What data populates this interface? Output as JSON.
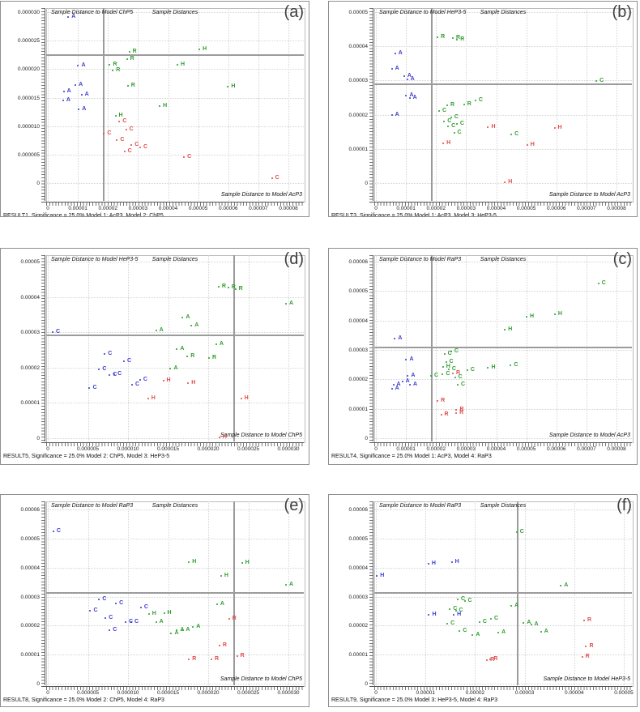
{
  "figure": {
    "description": "Grid of six Unscrambler-style sample distance scatter plots (Coomans plots) comparing SIMCA class models",
    "panel_letters": [
      "(a)",
      "(b)",
      "(d)",
      "(c)",
      "(e)",
      "(f)"
    ],
    "classes": [
      {
        "label": "A",
        "name": "class-A"
      },
      {
        "label": "C",
        "name": "class-C"
      },
      {
        "label": "H",
        "name": "class-H"
      },
      {
        "label": "R",
        "name": "class-R"
      }
    ]
  },
  "colors": {
    "blue": "#3b3bd1",
    "green": "#2f9e2f",
    "red": "#e04b4b",
    "grid": "#d4d4d4",
    "refline": "#9b9b9b",
    "axis": "#555555",
    "frame": "#bcbcbc",
    "border": "#8f8f8f",
    "text": "#1a1a1a",
    "panel_letter": "#3f3f3f"
  },
  "chart_data": [
    {
      "id": "a",
      "type": "scatter",
      "panel_label": "(a)",
      "title": "Sample Distances",
      "y_axis_title": "Sample Distance to Model ChP5",
      "x_axis_title": "Sample Distance to Model AcP3",
      "footer": "RESULT1, Significance = 25.0% Model 1: AcP3, Model 2: ChP5",
      "value_scale": "all x/y values and limits are in units of 1e-6",
      "x_ticks": [
        "0",
        "0.00001",
        "0.00002",
        "0.00003",
        "0.00004",
        "0.00005",
        "0.00006",
        "0.00007",
        "0.00008"
      ],
      "y_ticks": [
        "0.000030",
        "0.000025",
        "0.000020",
        "0.000015",
        "0.000010",
        "0.000005",
        "0"
      ],
      "xlim": [
        0,
        80
      ],
      "ylim": [
        0,
        30
      ],
      "vline": 18.6,
      "hline": 22.5,
      "series": [
        {
          "name": "A",
          "color_key": "blue",
          "points": [
            [
              6.8,
              29.2
            ],
            [
              10.1,
              20.6
            ],
            [
              9.2,
              17.2
            ],
            [
              5.3,
              16.1
            ],
            [
              11.2,
              15.5
            ],
            [
              5.1,
              14.5
            ],
            [
              10.3,
              12.9
            ]
          ]
        },
        {
          "name": "R",
          "color_key": "green",
          "points": [
            [
              27.1,
              23.0
            ],
            [
              26.3,
              21.8
            ],
            [
              20.6,
              20.7
            ],
            [
              21.6,
              19.7
            ],
            [
              26.6,
              17.0
            ]
          ]
        },
        {
          "name": "H",
          "color_key": "green",
          "points": [
            [
              50.4,
              23.5
            ],
            [
              43.1,
              20.8
            ],
            [
              59.9,
              16.9
            ],
            [
              37.2,
              13.5
            ],
            [
              22.5,
              11.8
            ]
          ]
        },
        {
          "name": "C",
          "color_key": "red",
          "points": [
            [
              23.8,
              10.8
            ],
            [
              26.0,
              9.4
            ],
            [
              18.7,
              8.7
            ],
            [
              23.0,
              7.5
            ],
            [
              27.8,
              6.7
            ],
            [
              30.7,
              6.3
            ],
            [
              25.5,
              5.5
            ],
            [
              45.3,
              4.5
            ],
            [
              74.5,
              0.8
            ]
          ]
        }
      ]
    },
    {
      "id": "b",
      "type": "scatter",
      "panel_label": "(b)",
      "title": "Sample Distances",
      "y_axis_title": "Sample Distance to Model HeP3-5",
      "x_axis_title": "Sample Distance to Model AcP3",
      "footer": "RESULT3, Significance = 25.0% Model 1: AcP3, Model 3: HeP3-5",
      "value_scale": "all x/y values and limits are in units of 1e-6",
      "x_ticks": [
        "0",
        "0.00001",
        "0.00002",
        "0.00003",
        "0.00004",
        "0.00005",
        "0.00006",
        "0.00007",
        "0.00008"
      ],
      "y_ticks": [
        "0.00005",
        "0.00004",
        "0.00003",
        "0.00002",
        "0.00001",
        "0"
      ],
      "xlim": [
        0,
        80
      ],
      "ylim": [
        0,
        50
      ],
      "vline": 18.6,
      "hline": 28.9,
      "series": [
        {
          "name": "A",
          "color_key": "blue",
          "points": [
            [
              6.4,
              37.8
            ],
            [
              5.3,
              33.4
            ],
            [
              9.4,
              31.3
            ],
            [
              10.4,
              30.3
            ],
            [
              10.1,
              25.7
            ],
            [
              11.2,
              25.0
            ],
            [
              5.3,
              20.0
            ]
          ]
        },
        {
          "name": "R",
          "color_key": "green",
          "points": [
            [
              20.5,
              42.7
            ],
            [
              25.6,
              42.4
            ],
            [
              27.0,
              42.0
            ],
            [
              23.7,
              22.8
            ],
            [
              29.3,
              23.1
            ]
          ]
        },
        {
          "name": "C",
          "color_key": "green",
          "points": [
            [
              73.3,
              29.9
            ],
            [
              33.1,
              24.2
            ],
            [
              21.0,
              21.2
            ],
            [
              25.0,
              19.2
            ],
            [
              22.7,
              18.1
            ],
            [
              26.9,
              17.4
            ],
            [
              24.0,
              16.5
            ],
            [
              26.0,
              14.8
            ],
            [
              45.0,
              14.1
            ]
          ]
        },
        {
          "name": "H",
          "color_key": "red",
          "points": [
            [
              37.3,
              16.3
            ],
            [
              59.4,
              16.0
            ],
            [
              22.4,
              11.5
            ],
            [
              50.3,
              11.2
            ],
            [
              42.9,
              0.3
            ]
          ]
        }
      ]
    },
    {
      "id": "d",
      "type": "scatter",
      "panel_label": "(d)",
      "title": "Sample Distances",
      "y_axis_title": "Sample Distance to Model HeP3-5",
      "x_axis_title": "Sample Distance to Model ChP5",
      "footer": "RESULT5, Significance = 25.0% Model 2: ChP5, Model 3: HeP3-5",
      "value_scale": "all x/y values and limits are in units of 1e-6",
      "x_ticks": [
        "0",
        "0.000005",
        "0.000010",
        "0.000015",
        "0.000020",
        "0.000025",
        "0.000030"
      ],
      "y_ticks": [
        "0.00005",
        "0.00004",
        "0.00003",
        "0.00002",
        "0.00001",
        "0"
      ],
      "xlim": [
        0,
        30
      ],
      "ylim": [
        0,
        50
      ],
      "vline": 23.2,
      "hline": 29.1,
      "series": [
        {
          "name": "C",
          "color_key": "blue",
          "points": [
            [
              0.6,
              30.1
            ],
            [
              7.1,
              23.8
            ],
            [
              9.5,
              21.8
            ],
            [
              6.4,
              19.6
            ],
            [
              8.3,
              18.1
            ],
            [
              7.7,
              17.8
            ],
            [
              11.5,
              16.4
            ],
            [
              10.5,
              15.2
            ],
            [
              5.2,
              14.3
            ]
          ]
        },
        {
          "name": "A",
          "color_key": "green",
          "points": [
            [
              29.7,
              38.1
            ],
            [
              16.8,
              34.1
            ],
            [
              17.9,
              31.9
            ],
            [
              13.5,
              30.6
            ],
            [
              21.0,
              26.5
            ],
            [
              16.1,
              25.2
            ],
            [
              15.3,
              19.8
            ]
          ]
        },
        {
          "name": "R",
          "color_key": "green",
          "points": [
            [
              21.3,
              42.9
            ],
            [
              22.5,
              42.7
            ],
            [
              23.4,
              42.3
            ],
            [
              17.4,
              23.1
            ],
            [
              20.1,
              22.8
            ]
          ]
        },
        {
          "name": "H",
          "color_key": "red",
          "points": [
            [
              14.4,
              16.2
            ],
            [
              17.5,
              15.7
            ],
            [
              12.5,
              11.2
            ],
            [
              24.1,
              11.2
            ],
            [
              21.4,
              0.3
            ]
          ]
        }
      ]
    },
    {
      "id": "c",
      "type": "scatter",
      "panel_label": "(c)",
      "title": "Sample Distances",
      "y_axis_title": "Sample Distance to Model RaP3",
      "x_axis_title": "Sample Distance to Model AcP3",
      "footer": "RESULT4, Significance = 25.0% Model 1: AcP3, Model 4: RaP3",
      "value_scale": "all x/y values and limits are in units of 1e-6",
      "x_ticks": [
        "0",
        "0.00001",
        "0.00002",
        "0.00003",
        "0.00004",
        "0.00005",
        "0.00006",
        "0.00007",
        "0.00008"
      ],
      "y_ticks": [
        "0.00006",
        "0.00005",
        "0.00004",
        "0.00003",
        "0.00002",
        "0.00001",
        "0"
      ],
      "xlim": [
        0,
        80
      ],
      "ylim": [
        0,
        60
      ],
      "vline": 18.6,
      "hline": 30.7,
      "series": [
        {
          "name": "A",
          "color_key": "blue",
          "points": [
            [
              6.3,
              33.9
            ],
            [
              10.1,
              26.7
            ],
            [
              10.6,
              21.1
            ],
            [
              8.8,
              19.4
            ],
            [
              5.8,
              18.3
            ],
            [
              11.3,
              18.2
            ],
            [
              5.3,
              16.9
            ]
          ]
        },
        {
          "name": "C",
          "color_key": "green",
          "points": [
            [
              74.0,
              52.5
            ],
            [
              44.8,
              24.8
            ],
            [
              30.4,
              23.2
            ],
            [
              25.0,
              29.4
            ],
            [
              22.8,
              28.5
            ],
            [
              23.3,
              25.9
            ],
            [
              24.2,
              23.5
            ],
            [
              22.2,
              21.7
            ],
            [
              18.3,
              21.1
            ],
            [
              26.3,
              20.6
            ],
            [
              27.2,
              18.3
            ]
          ]
        },
        {
          "name": "H",
          "color_key": "green",
          "points": [
            [
              59.5,
              42.0
            ],
            [
              50.1,
              41.3
            ],
            [
              42.9,
              37.0
            ],
            [
              22.3,
              24.2
            ],
            [
              37.3,
              24.0
            ]
          ]
        },
        {
          "name": "R",
          "color_key": "red",
          "points": [
            [
              25.6,
              22.0
            ],
            [
              20.5,
              12.6
            ],
            [
              21.7,
              7.9
            ],
            [
              26.7,
              8.5
            ],
            [
              26.8,
              9.5
            ]
          ]
        }
      ]
    },
    {
      "id": "e",
      "type": "scatter",
      "panel_label": "(e)",
      "title": "Sample Distances",
      "y_axis_title": "Sample Distance to Model RaP3",
      "x_axis_title": "Sample Distance to Model ChP5",
      "footer": "RESULT8, Significance = 25.0% Model 2: ChP5, Model 4: RaP3",
      "value_scale": "all x/y values and limits are in units of 1e-6",
      "x_ticks": [
        "0",
        "0.000005",
        "0.000010",
        "0.000015",
        "0.000020",
        "0.000025",
        "0.000030"
      ],
      "y_ticks": [
        "0.00006",
        "0.00005",
        "0.00004",
        "0.00003",
        "0.00002",
        "0.00001",
        "0"
      ],
      "xlim": [
        0,
        30
      ],
      "ylim": [
        0,
        60
      ],
      "vline": 23.2,
      "hline": 31.3,
      "series": [
        {
          "name": "C",
          "color_key": "blue",
          "points": [
            [
              0.7,
              52.4
            ],
            [
              6.4,
              29.0
            ],
            [
              8.5,
              27.6
            ],
            [
              11.6,
              26.2
            ],
            [
              5.3,
              25.1
            ],
            [
              7.2,
              22.5
            ],
            [
              9.7,
              21.3
            ],
            [
              10.4,
              21.3
            ],
            [
              7.7,
              18.4
            ]
          ]
        },
        {
          "name": "H",
          "color_key": "green",
          "points": [
            [
              17.6,
              42.0
            ],
            [
              24.2,
              41.6
            ],
            [
              21.6,
              37.0
            ],
            [
              14.5,
              24.2
            ],
            [
              12.6,
              24.1
            ]
          ]
        },
        {
          "name": "A",
          "color_key": "green",
          "points": [
            [
              29.7,
              34.1
            ],
            [
              21.1,
              27.4
            ],
            [
              13.5,
              21.3
            ],
            [
              18.1,
              19.6
            ],
            [
              16.1,
              18.5
            ],
            [
              16.8,
              18.5
            ],
            [
              15.4,
              17.2
            ]
          ]
        },
        {
          "name": "R",
          "color_key": "red",
          "points": [
            [
              22.6,
              22.2
            ],
            [
              21.4,
              13.1
            ],
            [
              17.6,
              8.4
            ],
            [
              20.4,
              8.3
            ],
            [
              23.6,
              9.5
            ]
          ]
        }
      ]
    },
    {
      "id": "f",
      "type": "scatter",
      "panel_label": "(f)",
      "title": "Sample Distances",
      "y_axis_title": "Sample Distance to Model RaP3",
      "x_axis_title": "Sample Distance to Model HeP3-5",
      "footer": "RESULT9, Significance = 25.0% Model 3: HeP3-5, Model 4: RaP3",
      "value_scale": "all x/y values and limits are in units of 1e-6",
      "x_ticks": [
        "0",
        "0.00001",
        "0.00002",
        "0.00003",
        "0.00004",
        "0.00005"
      ],
      "y_ticks": [
        "0.00006",
        "0.00005",
        "0.00004",
        "0.00003",
        "0.00002",
        "0.00001",
        "0"
      ],
      "xlim": [
        0,
        50
      ],
      "ylim": [
        0,
        60
      ],
      "vline": 28.6,
      "hline": 31.2,
      "series": [
        {
          "name": "H",
          "color_key": "blue",
          "points": [
            [
              15.3,
              42.0
            ],
            [
              10.6,
              41.4
            ],
            [
              0.2,
              37.0
            ],
            [
              10.7,
              23.7
            ],
            [
              15.7,
              23.6
            ]
          ]
        },
        {
          "name": "C",
          "color_key": "green",
          "points": [
            [
              28.4,
              52.2
            ],
            [
              16.5,
              29.0
            ],
            [
              17.9,
              28.6
            ],
            [
              14.9,
              25.6
            ],
            [
              16.1,
              25.2
            ],
            [
              14.4,
              20.6
            ],
            [
              20.9,
              21.1
            ],
            [
              23.2,
              22.2
            ],
            [
              16.9,
              18.2
            ]
          ]
        },
        {
          "name": "A",
          "color_key": "green",
          "points": [
            [
              37.3,
              33.9
            ],
            [
              27.3,
              26.8
            ],
            [
              29.8,
              21.0
            ],
            [
              31.3,
              20.4
            ],
            [
              33.3,
              18.0
            ],
            [
              24.7,
              17.7
            ],
            [
              19.5,
              16.7
            ]
          ]
        },
        {
          "name": "R",
          "color_key": "red",
          "points": [
            [
              42.0,
              21.9
            ],
            [
              42.4,
              12.8
            ],
            [
              41.6,
              9.2
            ],
            [
              22.4,
              8.0
            ],
            [
              23.1,
              8.3
            ]
          ]
        }
      ]
    }
  ]
}
